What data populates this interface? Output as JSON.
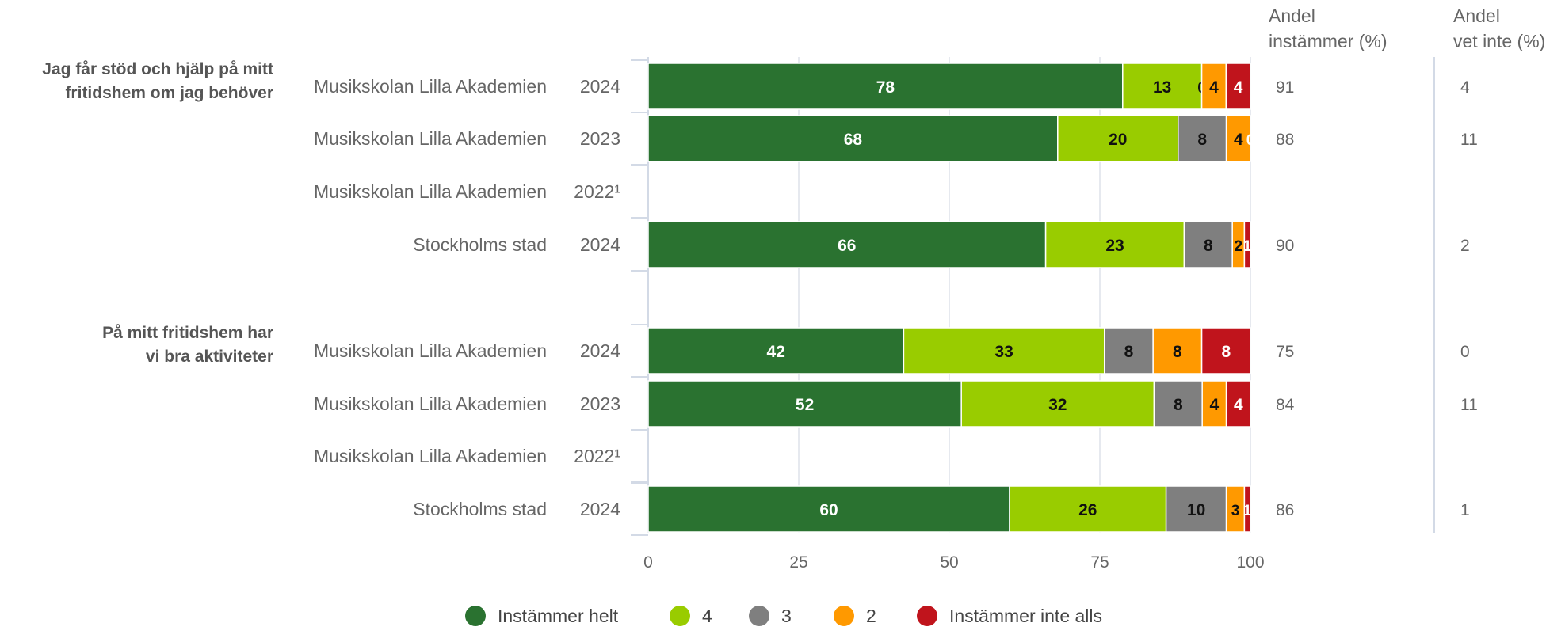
{
  "chart_data": {
    "type": "bar",
    "orientation": "horizontal",
    "stacked": true,
    "xlim": [
      0,
      100
    ],
    "x_ticks": [
      "0",
      "25",
      "50",
      "75",
      "100"
    ],
    "grid": true,
    "legend_position": "bottom",
    "column_headers": [
      [
        "Andel",
        "instämmer (%)"
      ],
      [
        "Andel",
        "vet inte (%)"
      ]
    ],
    "series": [
      {
        "name": "Instämmer helt",
        "color": "#2a7230"
      },
      {
        "name": "4",
        "color": "#99cc00"
      },
      {
        "name": "3",
        "color": "#7f7f7f"
      },
      {
        "name": "2",
        "color": "#ff9900"
      },
      {
        "name": "Instämmer inte alls",
        "color": "#c0141c"
      }
    ],
    "groups": [
      {
        "question": [
          "Jag får stöd och hjälp på mitt",
          "fritidshem om jag behöver"
        ],
        "rows": [
          {
            "label": "Musikskolan Lilla Akademien",
            "year": "2024",
            "values": [
              78,
              13,
              0,
              4,
              4
            ],
            "instammer": "91",
            "vet_inte": "4"
          },
          {
            "label": "Musikskolan Lilla Akademien",
            "year": "2023",
            "values": [
              68,
              20,
              8,
              4,
              0
            ],
            "instammer": "88",
            "vet_inte": "11"
          },
          {
            "label": "Musikskolan Lilla Akademien",
            "year": "2022¹",
            "values": null,
            "instammer": "",
            "vet_inte": ""
          },
          {
            "label": "Stockholms stad",
            "year": "2024",
            "values": [
              66,
              23,
              8,
              2,
              1
            ],
            "instammer": "90",
            "vet_inte": "2"
          }
        ]
      },
      {
        "question": [
          "På mitt fritidshem har",
          "vi bra aktiviteter"
        ],
        "rows": [
          {
            "label": "Musikskolan Lilla Akademien",
            "year": "2024",
            "values": [
              42,
              33,
              8,
              8,
              8
            ],
            "instammer": "75",
            "vet_inte": "0"
          },
          {
            "label": "Musikskolan Lilla Akademien",
            "year": "2023",
            "values": [
              52,
              32,
              8,
              4,
              4
            ],
            "instammer": "84",
            "vet_inte": "11"
          },
          {
            "label": "Musikskolan Lilla Akademien",
            "year": "2022¹",
            "values": null,
            "instammer": "",
            "vet_inte": ""
          },
          {
            "label": "Stockholms stad",
            "year": "2024",
            "values": [
              60,
              26,
              10,
              3,
              1
            ],
            "instammer": "86",
            "vet_inte": "1"
          }
        ]
      }
    ]
  }
}
